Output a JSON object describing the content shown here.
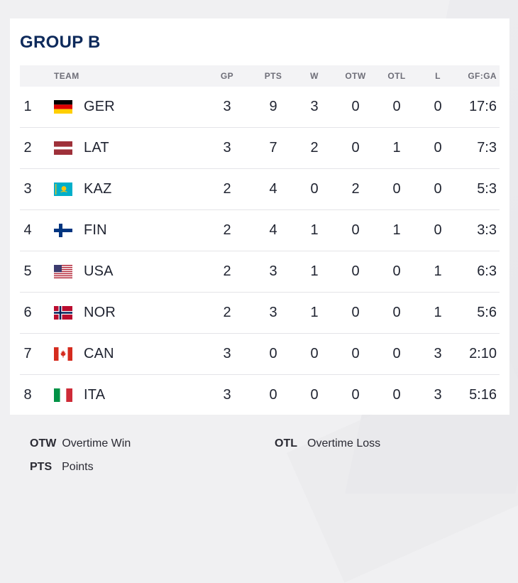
{
  "title": "GROUP B",
  "headers": {
    "team": "TEAM",
    "gp": "GP",
    "pts": "PTS",
    "w": "W",
    "otw": "OTW",
    "otl": "OTL",
    "l": "L",
    "gfga": "GF:GA"
  },
  "rows": [
    {
      "rank": "1",
      "team": "GER",
      "flag": "germany-flag-icon",
      "gp": "3",
      "pts": "9",
      "w": "3",
      "otw": "0",
      "otl": "0",
      "l": "0",
      "gfga": "17:6"
    },
    {
      "rank": "2",
      "team": "LAT",
      "flag": "latvia-flag-icon",
      "gp": "3",
      "pts": "7",
      "w": "2",
      "otw": "0",
      "otl": "1",
      "l": "0",
      "gfga": "7:3"
    },
    {
      "rank": "3",
      "team": "KAZ",
      "flag": "kazakhstan-flag-icon",
      "gp": "2",
      "pts": "4",
      "w": "0",
      "otw": "2",
      "otl": "0",
      "l": "0",
      "gfga": "5:3"
    },
    {
      "rank": "4",
      "team": "FIN",
      "flag": "finland-flag-icon",
      "gp": "2",
      "pts": "4",
      "w": "1",
      "otw": "0",
      "otl": "1",
      "l": "0",
      "gfga": "3:3"
    },
    {
      "rank": "5",
      "team": "USA",
      "flag": "usa-flag-icon",
      "gp": "2",
      "pts": "3",
      "w": "1",
      "otw": "0",
      "otl": "0",
      "l": "1",
      "gfga": "6:3"
    },
    {
      "rank": "6",
      "team": "NOR",
      "flag": "norway-flag-icon",
      "gp": "2",
      "pts": "3",
      "w": "1",
      "otw": "0",
      "otl": "0",
      "l": "1",
      "gfga": "5:6"
    },
    {
      "rank": "7",
      "team": "CAN",
      "flag": "canada-flag-icon",
      "gp": "3",
      "pts": "0",
      "w": "0",
      "otw": "0",
      "otl": "0",
      "l": "3",
      "gfga": "2:10"
    },
    {
      "rank": "8",
      "team": "ITA",
      "flag": "italy-flag-icon",
      "gp": "3",
      "pts": "0",
      "w": "0",
      "otw": "0",
      "otl": "0",
      "l": "3",
      "gfga": "5:16"
    }
  ],
  "legend": [
    {
      "abbr": "OTW",
      "text": "Overtime Win"
    },
    {
      "abbr": "OTL",
      "text": "Overtime Loss"
    },
    {
      "abbr": "PTS",
      "text": "Points"
    }
  ],
  "colors": {
    "title": "#0e2a5b",
    "header_bg": "#f3f3f5",
    "row_divider": "#e4e4e8"
  }
}
